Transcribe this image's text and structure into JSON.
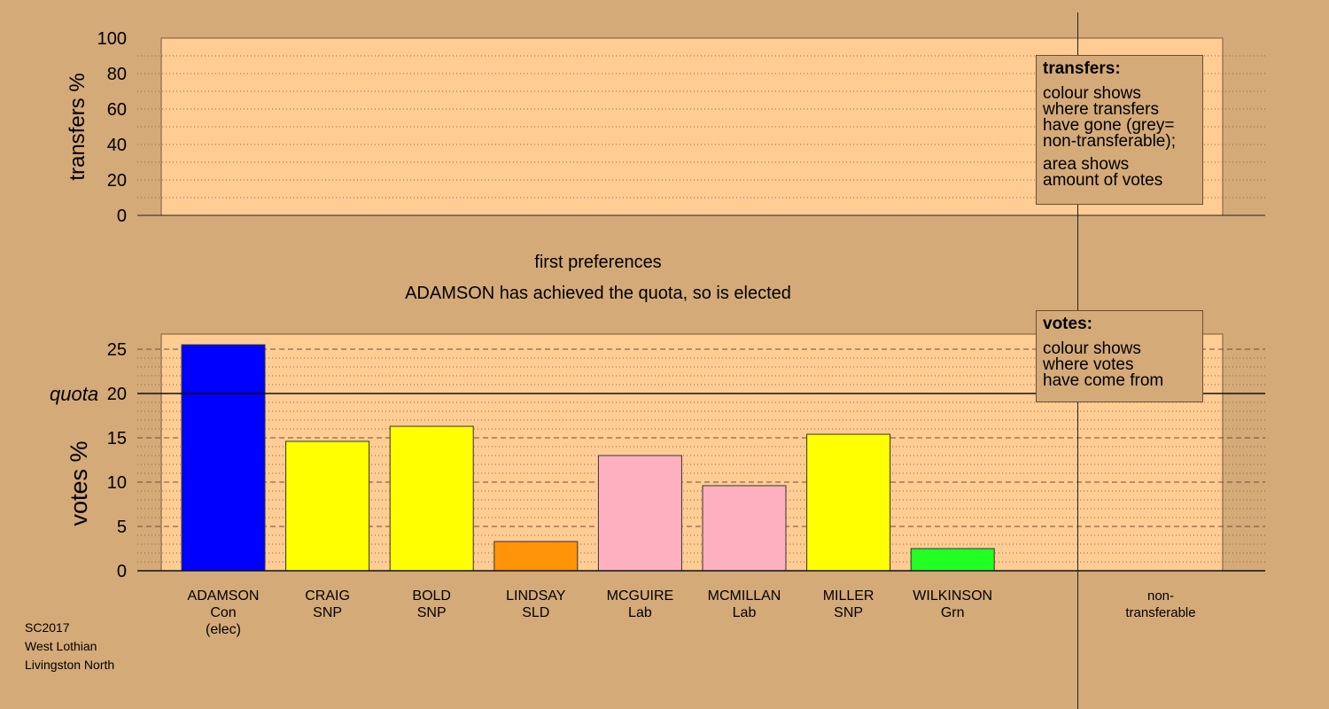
{
  "chart_data": [
    {
      "type": "bar",
      "ylabel": "transfers %",
      "ylim": [
        0,
        100
      ],
      "yticks": [
        "0",
        "20",
        "40",
        "60",
        "80",
        "100"
      ],
      "grid": "dotted",
      "series": []
    },
    {
      "type": "bar",
      "title": "first preferences",
      "subtitle": "ADAMSON has achieved the quota, so is elected",
      "ylabel": "votes %",
      "ylim": [
        0,
        26.7
      ],
      "yticks": [
        "0",
        "5",
        "10",
        "15",
        "20",
        "25"
      ],
      "quota": 20,
      "quota_label": "quota",
      "grid": "dotted",
      "categories": [
        {
          "name": "ADAMSON",
          "party": "Con",
          "note": "(elec)"
        },
        {
          "name": "CRAIG",
          "party": "SNP",
          "note": ""
        },
        {
          "name": "BOLD",
          "party": "SNP",
          "note": ""
        },
        {
          "name": "LINDSAY",
          "party": "SLD",
          "note": ""
        },
        {
          "name": "MCGUIRE",
          "party": "Lab",
          "note": ""
        },
        {
          "name": "MCMILLAN",
          "party": "Lab",
          "note": ""
        },
        {
          "name": "MILLER",
          "party": "SNP",
          "note": ""
        },
        {
          "name": "WILKINSON",
          "party": "Grn",
          "note": ""
        }
      ],
      "values": [
        25.5,
        14.6,
        16.3,
        3.3,
        13.0,
        9.6,
        15.4,
        2.5
      ],
      "colors": [
        "#0000ff",
        "#ffff00",
        "#ffff00",
        "#ff9408",
        "#ffb0c0",
        "#ffb0c0",
        "#ffff00",
        "#22ff22"
      ],
      "nontransferable_label": [
        "non-",
        "transferable"
      ]
    }
  ],
  "legends": {
    "transfers": {
      "title": "transfers:",
      "lines1": [
        "colour shows",
        "where transfers",
        "have gone (grey=",
        "non-transferable);"
      ],
      "lines2": [
        "area shows",
        "amount of votes"
      ]
    },
    "votes": {
      "title": "votes:",
      "lines1": [
        "colour shows",
        "where votes",
        "have come from"
      ]
    }
  },
  "footer": {
    "election": "SC2017",
    "council": "West Lothian",
    "ward": "Livingston North"
  },
  "colors": {
    "background": "#d4aa78",
    "plot_fill": "#ffcc94"
  }
}
